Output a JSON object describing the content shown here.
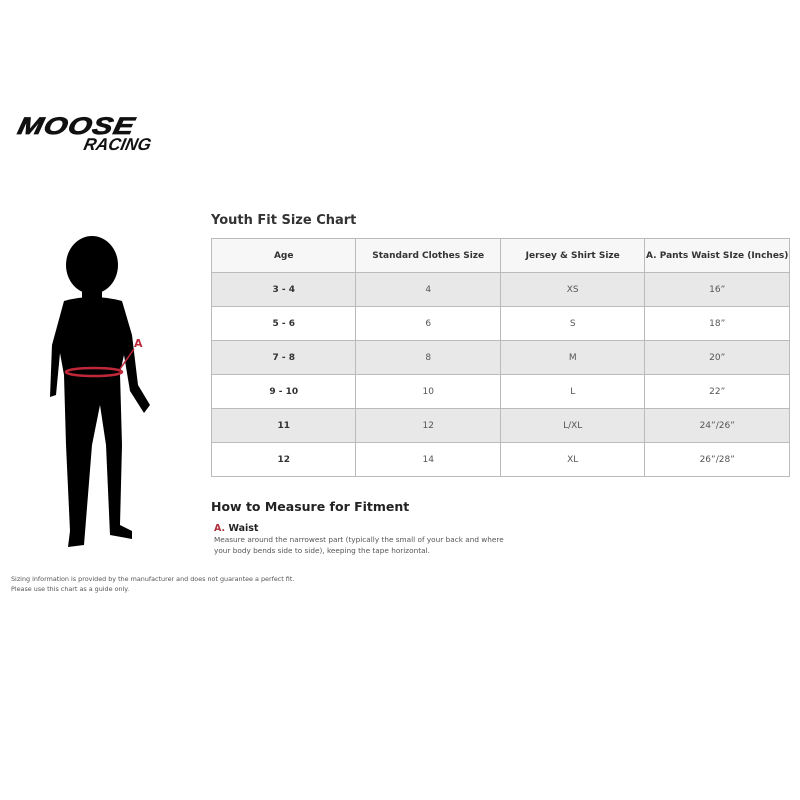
{
  "logo": {
    "line1": "MOOSE",
    "line2": "RACING"
  },
  "chart": {
    "title": "Youth Fit Size Chart",
    "headers": [
      "Age",
      "Standard Clothes Size",
      "Jersey & Shirt Size",
      "A. Pants Waist SIze (Inches)"
    ],
    "rows": [
      [
        "3 - 4",
        "4",
        "XS",
        "16”"
      ],
      [
        "5 - 6",
        "6",
        "S",
        "18”"
      ],
      [
        "7 - 8",
        "8",
        "M",
        "20”"
      ],
      [
        "9 - 10",
        "10",
        "L",
        "22”"
      ],
      [
        "11",
        "12",
        "L/XL",
        "24”/26”"
      ],
      [
        "12",
        "14",
        "XL",
        "26”/28”"
      ]
    ]
  },
  "figure": {
    "marker": "A",
    "accent": "#c0283a"
  },
  "measure": {
    "title": "How to Measure for Fitment",
    "item_letter": "A.",
    "item_label": "Waist",
    "item_desc": "Measure around the narrowest part (typically the small of your back and where your body bends side to side), keeping the tape horizontal."
  },
  "disclaimer": {
    "line1": "Sizing information is provided by the manufacturer and does not guarantee a perfect fit.",
    "line2": "Please use this chart as a guide only."
  }
}
